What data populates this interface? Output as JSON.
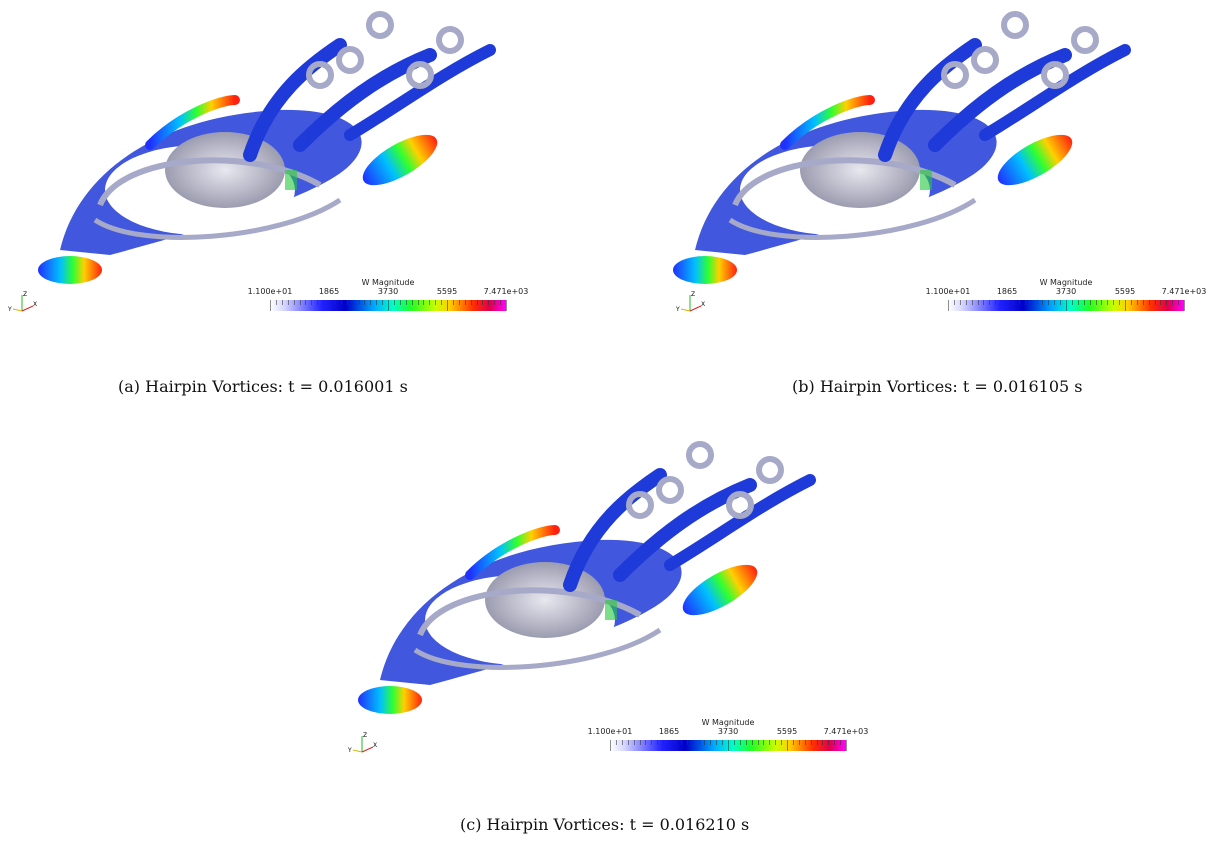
{
  "panels": [
    {
      "id": "a",
      "caption": "(a)  Hairpin Vortices:  t = 0.016001 s"
    },
    {
      "id": "b",
      "caption": "(b)  Hairpin Vortices:  t = 0.016105 s"
    },
    {
      "id": "c",
      "caption": "(c)  Hairpin Vortices:  t = 0.016210 s"
    }
  ],
  "colorbar": {
    "title": "W Magnitude",
    "ticks": [
      "1.100e+01",
      "1865",
      "3730",
      "5595",
      "7.471e+03"
    ],
    "colormap": "rainbow-desaturated (white → blue → cyan → green → yellow → red → magenta)"
  },
  "axes": {
    "z": "Z",
    "y": "Y",
    "x": "X"
  },
  "colors": {
    "vortex_blue": "#1e3ad8",
    "ring_gray": "#a7a9c8",
    "dome_gray": "#c9c9d6",
    "green": "#22c83c",
    "red": "#e02818",
    "orange": "#ff8a10"
  }
}
